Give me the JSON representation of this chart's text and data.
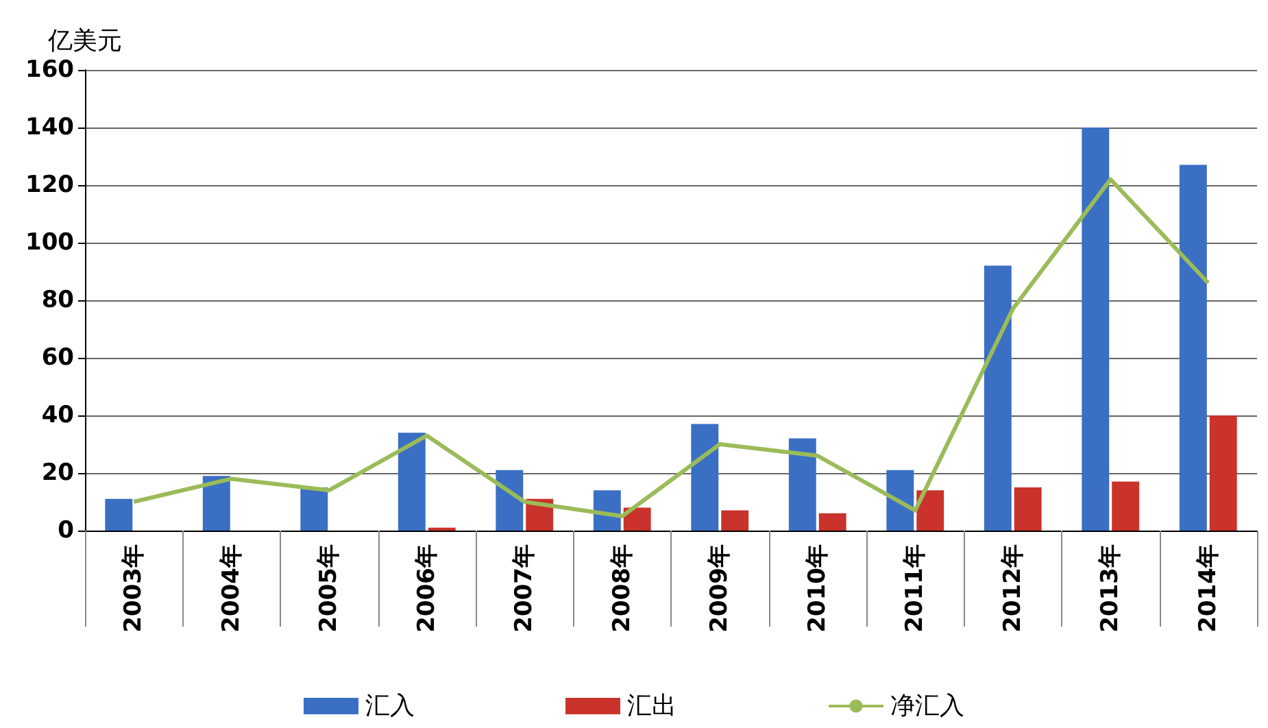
{
  "chart_data": {
    "type": "bar",
    "ylabel": "亿美元",
    "categories": [
      "2003年",
      "2004年",
      "2005年",
      "2006年",
      "2007年",
      "2008年",
      "2009年",
      "2010年",
      "2011年",
      "2012年",
      "2013年",
      "2014年"
    ],
    "series": [
      {
        "name": "汇入",
        "color": "#3a6fc4",
        "values": [
          11,
          19,
          15,
          34,
          21,
          14,
          37,
          32,
          21,
          92,
          140,
          127
        ]
      },
      {
        "name": "汇出",
        "color": "#c9332b",
        "values": [
          0,
          0,
          0,
          1,
          11,
          8,
          7,
          6,
          14,
          15,
          17,
          40
        ]
      },
      {
        "name": "净汇入",
        "type": "line",
        "color": "#9bbb59",
        "values": [
          10,
          18,
          14,
          33,
          10,
          5,
          30,
          26,
          7,
          77,
          122,
          86
        ]
      }
    ],
    "ylim": [
      0,
      160
    ],
    "yticks": [
      0,
      20,
      40,
      60,
      80,
      100,
      120,
      140,
      160
    ],
    "grid": "y",
    "legend": "bottom",
    "marker": "none"
  }
}
